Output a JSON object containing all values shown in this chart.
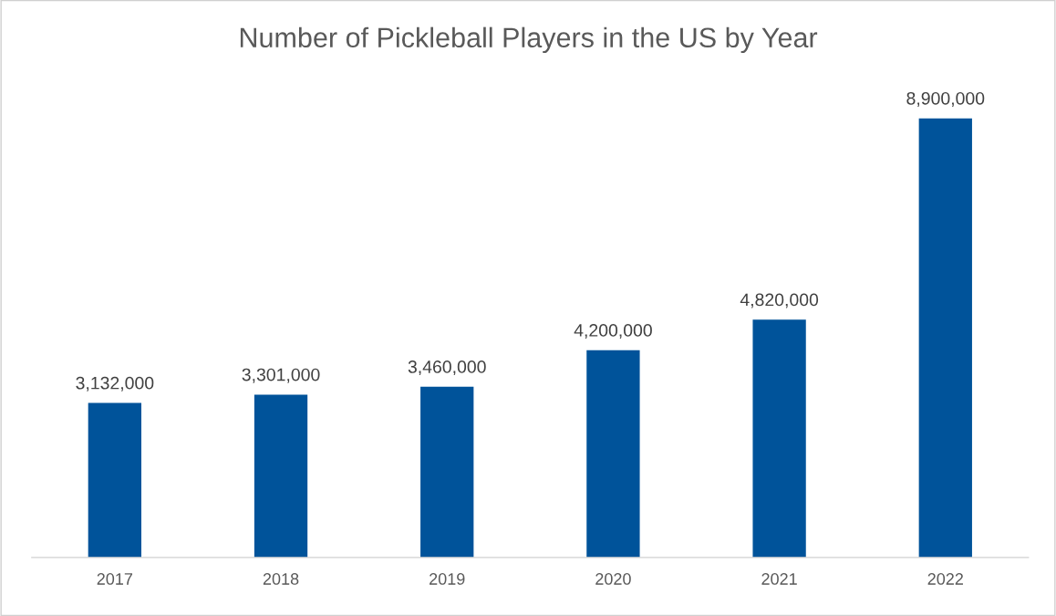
{
  "chart_data": {
    "type": "bar",
    "title": "Number of Pickleball Players in the US by Year",
    "categories": [
      "2017",
      "2018",
      "2019",
      "2020",
      "2021",
      "2022"
    ],
    "values": [
      3132000,
      3301000,
      3460000,
      4200000,
      4820000,
      8900000
    ],
    "value_labels": [
      "3,132,000",
      "3,301,000",
      "3,460,000",
      "4,200,000",
      "4,820,000",
      "8,900,000"
    ],
    "color": "#00539a",
    "grid": false,
    "legend": false
  }
}
